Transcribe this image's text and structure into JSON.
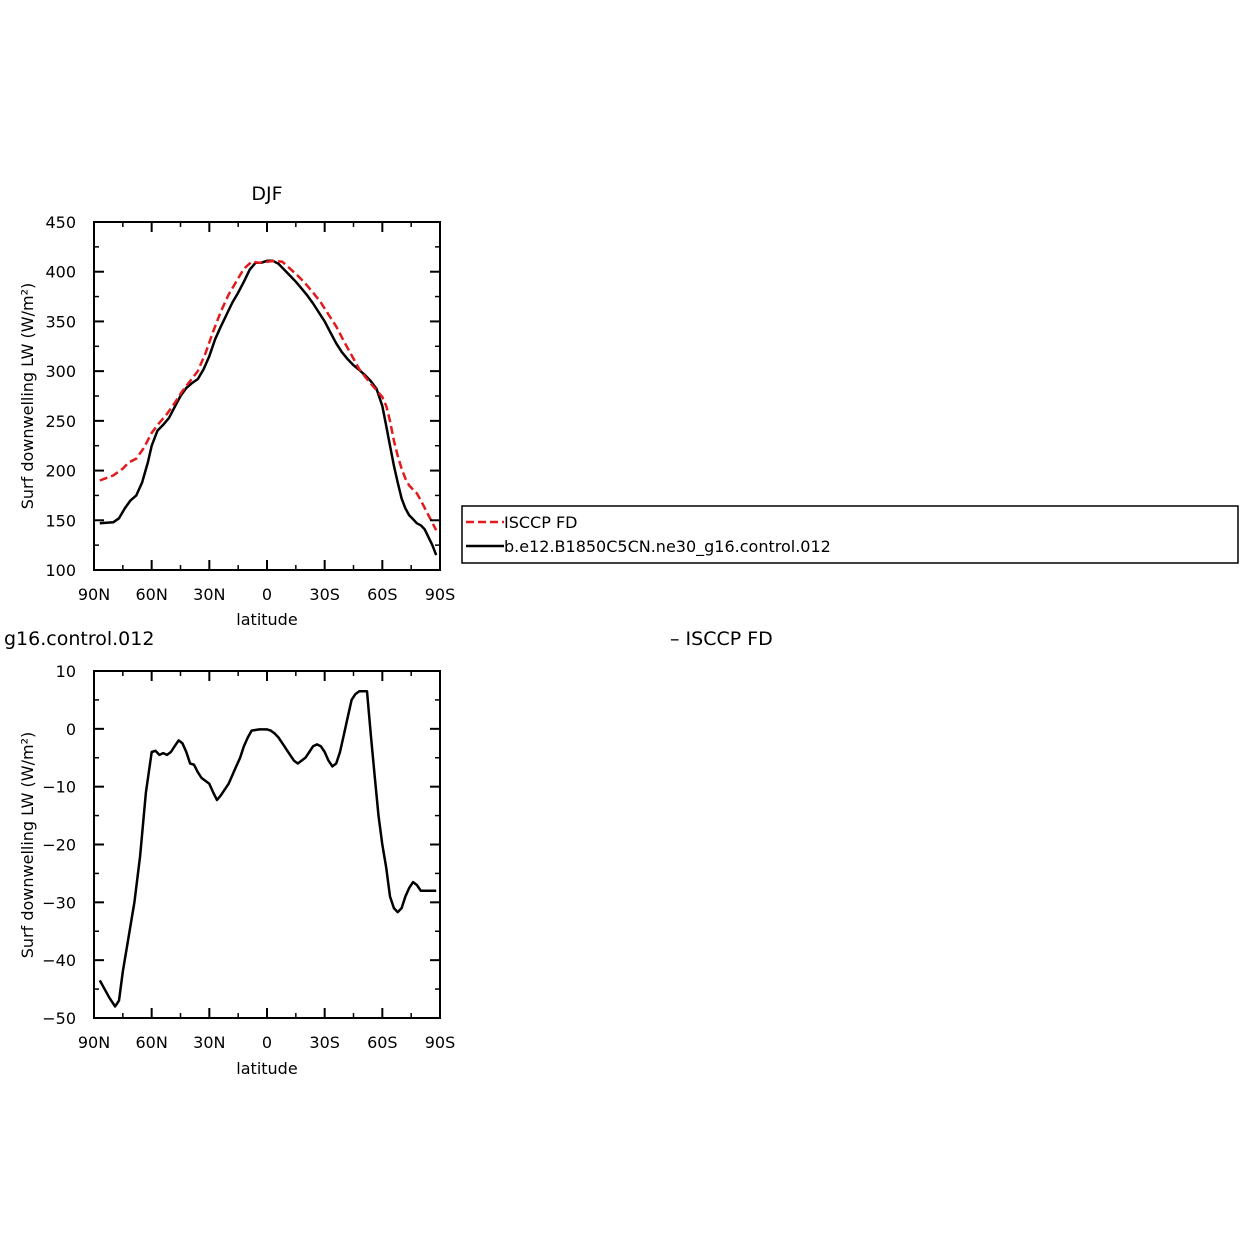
{
  "colors": {
    "model": "#000000",
    "observation": "#e31a1c",
    "background": "#ffffff"
  },
  "legend": {
    "items": [
      "ISCCP FD",
      "b.e12.B1850C5CN.ne30_g16.control.012"
    ]
  },
  "chart_data": [
    {
      "type": "line",
      "title": "DJF",
      "xlabel": "latitude",
      "ylabel": "Surf downwelling LW (W/m²)",
      "xlim": [
        90,
        -90
      ],
      "ylim": [
        100,
        450
      ],
      "x_ticks": [
        90,
        60,
        30,
        0,
        -30,
        -60,
        -90
      ],
      "x_tick_labels": [
        "90N",
        "60N",
        "30N",
        "0",
        "30S",
        "60S",
        "90S"
      ],
      "y_ticks": [
        100,
        150,
        200,
        250,
        300,
        350,
        400,
        450
      ],
      "y_tick_labels": [
        "100",
        "150",
        "200",
        "250",
        "300",
        "350",
        "400",
        "450"
      ],
      "legend_position": "right",
      "series": [
        {
          "name": "ISCCP FD",
          "style": "dashed",
          "color": "#e31a1c",
          "x": [
            87,
            80,
            75,
            72,
            68,
            64,
            60,
            56,
            52,
            48,
            44,
            40,
            36,
            32,
            28,
            24,
            20,
            16,
            12,
            8,
            4,
            0,
            -4,
            -8,
            -12,
            -16,
            -20,
            -24,
            -28,
            -32,
            -36,
            -40,
            -44,
            -48,
            -52,
            -56,
            -60,
            -62,
            -64,
            -66,
            -68,
            -70,
            -72,
            -74,
            -76,
            -78,
            -80,
            -84,
            -88
          ],
          "y": [
            190,
            195,
            202,
            208,
            212,
            223,
            238,
            248,
            257,
            268,
            280,
            290,
            300,
            318,
            340,
            360,
            377,
            390,
            403,
            410,
            409,
            410,
            411,
            410,
            403,
            396,
            388,
            379,
            369,
            357,
            345,
            330,
            316,
            302,
            292,
            283,
            274,
            265,
            250,
            230,
            215,
            202,
            192,
            185,
            181,
            177,
            170,
            155,
            140
          ]
        },
        {
          "name": "b.e12.B1850C5CN.ne30_g16.control.012",
          "style": "solid",
          "color": "#000000",
          "x": [
            87,
            80,
            77,
            74,
            71,
            68,
            65,
            62,
            60,
            57,
            54,
            51,
            48,
            45,
            42,
            39,
            36,
            33,
            30,
            27,
            24,
            21,
            18,
            15,
            12,
            9,
            6,
            3,
            0,
            -3,
            -6,
            -9,
            -12,
            -15,
            -18,
            -21,
            -24,
            -27,
            -30,
            -33,
            -36,
            -39,
            -42,
            -45,
            -48,
            -51,
            -54,
            -57,
            -60,
            -62,
            -64,
            -66,
            -68,
            -70,
            -72,
            -74,
            -76,
            -78,
            -80,
            -82,
            -84,
            -86,
            -88
          ],
          "y": [
            147,
            148,
            152,
            162,
            170,
            175,
            188,
            208,
            225,
            240,
            246,
            253,
            264,
            275,
            283,
            288,
            292,
            302,
            315,
            332,
            345,
            357,
            369,
            379,
            390,
            402,
            409,
            409,
            411,
            411,
            408,
            402,
            396,
            390,
            383,
            376,
            368,
            359,
            350,
            339,
            328,
            319,
            312,
            306,
            301,
            296,
            290,
            282,
            265,
            245,
            225,
            205,
            188,
            172,
            162,
            155,
            151,
            147,
            145,
            141,
            133,
            125,
            115
          ]
        }
      ]
    },
    {
      "type": "line",
      "title": "g16.control.012",
      "subtitle": "– ISCCP FD",
      "xlabel": "latitude",
      "ylabel": "Surf downwelling LW (W/m²)",
      "xlim": [
        90,
        -90
      ],
      "ylim": [
        -50,
        10
      ],
      "x_ticks": [
        90,
        60,
        30,
        0,
        -30,
        -60,
        -90
      ],
      "x_tick_labels": [
        "90N",
        "60N",
        "30N",
        "0",
        "30S",
        "60S",
        "90S"
      ],
      "y_ticks": [
        -50,
        -40,
        -30,
        -20,
        -10,
        0,
        10
      ],
      "y_tick_labels": [
        "−50",
        "−40",
        "−30",
        "−20",
        "−10",
        "0",
        "10"
      ],
      "series": [
        {
          "style": "solid",
          "color": "#000000",
          "x": [
            87,
            82,
            79,
            77,
            75,
            72,
            69,
            66,
            63,
            60,
            58,
            56,
            54,
            52,
            50,
            48,
            46,
            44,
            42,
            40,
            38,
            36,
            34,
            32,
            30,
            28,
            26,
            24,
            22,
            20,
            18,
            16,
            14,
            12,
            10,
            8,
            6,
            4,
            2,
            0,
            -2,
            -4,
            -6,
            -8,
            -10,
            -12,
            -14,
            -16,
            -18,
            -20,
            -22,
            -24,
            -26,
            -28,
            -30,
            -32,
            -34,
            -36,
            -38,
            -40,
            -42,
            -44,
            -46,
            -48,
            -50,
            -52,
            -54,
            -56,
            -58,
            -60,
            -62,
            -64,
            -66,
            -68,
            -70,
            -72,
            -74,
            -76,
            -78,
            -80,
            -82,
            -84,
            -86,
            -88
          ],
          "y": [
            -43.5,
            -46.5,
            -48,
            -47,
            -42,
            -36,
            -30,
            -22,
            -11,
            -4,
            -3.8,
            -4.5,
            -4.2,
            -4.5,
            -4,
            -3,
            -2,
            -2.5,
            -4,
            -6,
            -6.2,
            -7.5,
            -8.5,
            -9,
            -9.5,
            -11,
            -12.3,
            -11.5,
            -10.5,
            -9.5,
            -8,
            -6.5,
            -5,
            -3,
            -1.5,
            -0.3,
            -0.2,
            -0.1,
            -0.1,
            -0.1,
            -0.3,
            -0.8,
            -1.5,
            -2.5,
            -3.5,
            -4.5,
            -5.5,
            -6,
            -5.5,
            -5,
            -4,
            -3,
            -2.7,
            -3,
            -4,
            -5.5,
            -6.5,
            -6,
            -4,
            -1,
            2,
            5,
            6,
            6.5,
            6.5,
            6.5,
            -1,
            -8,
            -15,
            -20,
            -24,
            -29,
            -31,
            -31.7,
            -31,
            -29,
            -27.5,
            -26.5,
            -27,
            -28,
            -28,
            -28,
            -28,
            -28
          ]
        }
      ]
    }
  ]
}
